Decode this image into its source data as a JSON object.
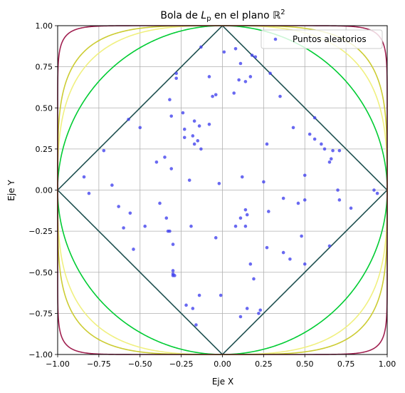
{
  "chart_data": {
    "type": "scatter",
    "title": {
      "base": "Bola de ",
      "var": "L",
      "sub": "p",
      "mid": " en el plano ",
      "field": "ℝ",
      "sup": "2"
    },
    "xlabel": "Eje X",
    "ylabel": "Eje Y",
    "xlim": [
      -1.0,
      1.0
    ],
    "ylim": [
      -1.0,
      1.0
    ],
    "xticks": [
      "−1.00",
      "−0.75",
      "−0.50",
      "−0.25",
      "0.00",
      "0.25",
      "0.50",
      "0.75",
      "1.00"
    ],
    "yticks": [
      "−1.00",
      "−0.75",
      "−0.50",
      "−0.25",
      "0.00",
      "0.25",
      "0.50",
      "0.75",
      "1.00"
    ],
    "grid": true,
    "legend": {
      "position": "top-right",
      "entries": [
        "Puntos aleatorios"
      ]
    },
    "curves": [
      {
        "p": 1,
        "color": "#1e5050"
      },
      {
        "p": 2,
        "color": "#00cc33"
      },
      {
        "p": 3,
        "color": "#f0f080"
      },
      {
        "p": 4,
        "color": "#cccc33"
      },
      {
        "p": 12,
        "color": "#a02050"
      }
    ],
    "series": [
      {
        "name": "Puntos aleatorios",
        "color": "#4444ee",
        "points": [
          [
            -0.13,
            0.87
          ],
          [
            0.01,
            0.84
          ],
          [
            0.08,
            0.86
          ],
          [
            0.11,
            0.77
          ],
          [
            0.18,
            0.82
          ],
          [
            0.2,
            0.81
          ],
          [
            -0.28,
            0.71
          ],
          [
            -0.28,
            0.68
          ],
          [
            -0.08,
            0.69
          ],
          [
            0.1,
            0.67
          ],
          [
            0.14,
            0.66
          ],
          [
            0.17,
            0.69
          ],
          [
            0.29,
            0.71
          ],
          [
            -0.06,
            0.57
          ],
          [
            -0.04,
            0.58
          ],
          [
            0.07,
            0.59
          ],
          [
            0.35,
            0.57
          ],
          [
            -0.32,
            0.55
          ],
          [
            -0.31,
            0.45
          ],
          [
            -0.24,
            0.47
          ],
          [
            -0.57,
            0.43
          ],
          [
            -0.5,
            0.38
          ],
          [
            -0.17,
            0.42
          ],
          [
            -0.14,
            0.39
          ],
          [
            -0.23,
            0.37
          ],
          [
            -0.18,
            0.33
          ],
          [
            -0.23,
            0.32
          ],
          [
            -0.15,
            0.3
          ],
          [
            -0.17,
            0.28
          ],
          [
            -0.13,
            0.25
          ],
          [
            -0.08,
            0.4
          ],
          [
            0.43,
            0.38
          ],
          [
            0.56,
            0.44
          ],
          [
            0.53,
            0.34
          ],
          [
            0.56,
            0.31
          ],
          [
            0.6,
            0.28
          ],
          [
            0.62,
            0.25
          ],
          [
            0.67,
            0.24
          ],
          [
            0.71,
            0.24
          ],
          [
            0.27,
            0.28
          ],
          [
            0.65,
            0.17
          ],
          [
            0.66,
            0.19
          ],
          [
            -0.72,
            0.24
          ],
          [
            -0.35,
            0.2
          ],
          [
            -0.31,
            0.13
          ],
          [
            -0.4,
            0.17
          ],
          [
            -0.84,
            0.08
          ],
          [
            -0.2,
            0.06
          ],
          [
            -0.02,
            0.04
          ],
          [
            0.12,
            0.08
          ],
          [
            0.25,
            0.05
          ],
          [
            0.5,
            0.09
          ],
          [
            -0.67,
            0.03
          ],
          [
            -0.81,
            -0.02
          ],
          [
            0.7,
            0.0
          ],
          [
            0.92,
            0.0
          ],
          [
            0.94,
            -0.02
          ],
          [
            -0.63,
            -0.1
          ],
          [
            -0.56,
            -0.14
          ],
          [
            -0.38,
            -0.08
          ],
          [
            -0.34,
            -0.17
          ],
          [
            0.37,
            -0.05
          ],
          [
            0.46,
            -0.08
          ],
          [
            0.5,
            -0.06
          ],
          [
            0.71,
            -0.06
          ],
          [
            0.78,
            -0.11
          ],
          [
            0.14,
            -0.12
          ],
          [
            0.15,
            -0.15
          ],
          [
            0.28,
            -0.13
          ],
          [
            0.11,
            -0.17
          ],
          [
            0.14,
            -0.22
          ],
          [
            0.08,
            -0.22
          ],
          [
            -0.6,
            -0.23
          ],
          [
            -0.47,
            -0.22
          ],
          [
            -0.19,
            -0.22
          ],
          [
            -0.04,
            -0.29
          ],
          [
            -0.32,
            -0.25
          ],
          [
            -0.33,
            -0.25
          ],
          [
            0.48,
            -0.28
          ],
          [
            -0.3,
            -0.33
          ],
          [
            -0.54,
            -0.36
          ],
          [
            0.27,
            -0.35
          ],
          [
            0.65,
            -0.34
          ],
          [
            0.37,
            -0.38
          ],
          [
            0.41,
            -0.42
          ],
          [
            0.17,
            -0.45
          ],
          [
            0.5,
            -0.45
          ],
          [
            -0.3,
            -0.49
          ],
          [
            -0.3,
            -0.51
          ],
          [
            -0.29,
            -0.52
          ],
          [
            -0.3,
            -0.52
          ],
          [
            0.19,
            -0.54
          ],
          [
            -0.14,
            -0.64
          ],
          [
            -0.01,
            -0.64
          ],
          [
            -0.22,
            -0.7
          ],
          [
            -0.18,
            -0.72
          ],
          [
            0.15,
            -0.72
          ],
          [
            0.22,
            -0.75
          ],
          [
            0.23,
            -0.73
          ],
          [
            0.11,
            -0.77
          ],
          [
            -0.16,
            -0.82
          ]
        ]
      }
    ]
  }
}
